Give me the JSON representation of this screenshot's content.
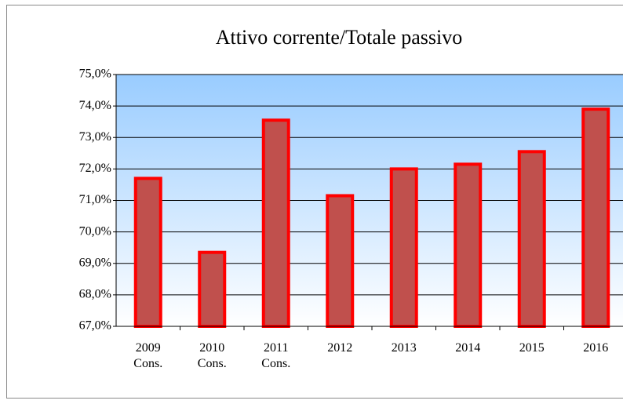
{
  "chart_data": {
    "type": "bar",
    "title": "Attivo corrente/Totale passivo",
    "categories": [
      "2009 Cons.",
      "2010 Cons.",
      "2011 Cons.",
      "2012",
      "2013",
      "2014",
      "2015",
      "2016"
    ],
    "values": [
      71.7,
      69.35,
      73.55,
      71.15,
      72.0,
      72.15,
      72.55,
      73.9
    ],
    "color": "#c0504d",
    "edge_color": "#ff0000",
    "ylim": [
      67,
      75
    ],
    "yticks": [
      {
        "value": 67,
        "label": "67,0%"
      },
      {
        "value": 68,
        "label": "68,0%"
      },
      {
        "value": 69,
        "label": "69,0%"
      },
      {
        "value": 70,
        "label": "70,0%"
      },
      {
        "value": 71,
        "label": "71,0%"
      },
      {
        "value": 72,
        "label": "72,0%"
      },
      {
        "value": 73,
        "label": "73,0%"
      },
      {
        "value": 74,
        "label": "74,0%"
      },
      {
        "value": 75,
        "label": "75,0%"
      }
    ],
    "grid": true
  }
}
